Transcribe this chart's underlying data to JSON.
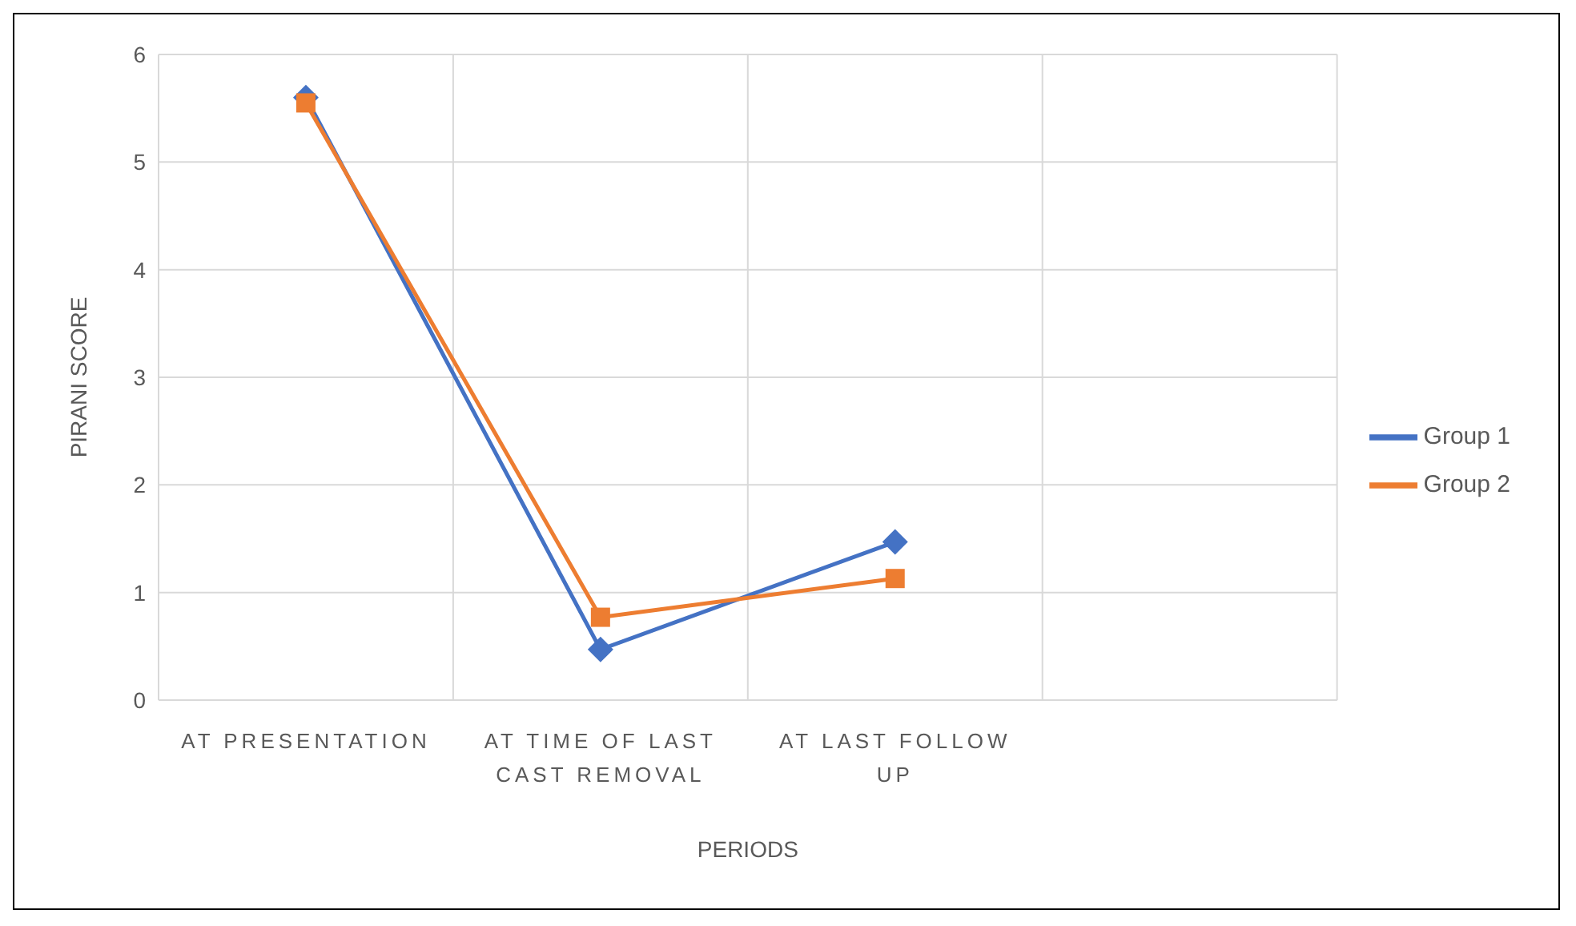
{
  "chart_data": {
    "type": "line",
    "xlabel": "PERIODS",
    "ylabel": "PIRANI SCORE",
    "categories": [
      "AT PRESENTATION",
      "AT TIME OF LAST CAST REMOVAL",
      "AT LAST FOLLOW UP",
      null
    ],
    "series": [
      {
        "name": "Group 1",
        "color": "#4472c4",
        "marker": "diamond",
        "values": [
          5.6,
          0.47,
          1.47,
          null
        ]
      },
      {
        "name": "Group 2",
        "color": "#ed7d31",
        "marker": "square",
        "values": [
          5.55,
          0.77,
          1.13,
          null
        ]
      }
    ],
    "ylim": [
      0,
      6
    ],
    "yticks": [
      0,
      1,
      2,
      3,
      4,
      5,
      6
    ],
    "grid": true,
    "legend": "right"
  }
}
